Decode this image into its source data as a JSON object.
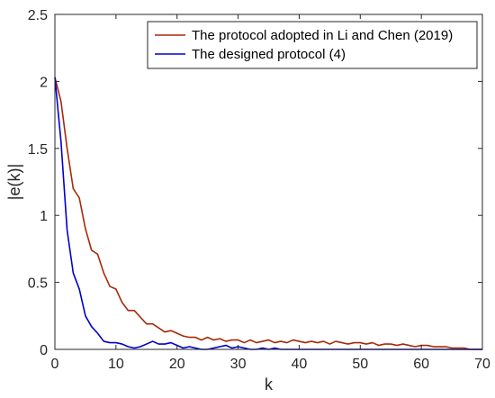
{
  "chart_data": {
    "type": "line",
    "xlabel": "k",
    "ylabel": "|e(k)|",
    "xlim": [
      0,
      70
    ],
    "ylim": [
      0,
      2.5
    ],
    "xticks": [
      0,
      10,
      20,
      30,
      40,
      50,
      60,
      70
    ],
    "yticks": [
      0,
      0.5,
      1,
      1.5,
      2,
      2.5
    ],
    "grid": false,
    "legend_position": "top-right",
    "series": [
      {
        "name": "The protocol adopted in Li and Chen (2019)",
        "color": "#a52a0a",
        "x": [
          0,
          1,
          2,
          3,
          4,
          5,
          6,
          7,
          8,
          9,
          10,
          11,
          12,
          13,
          14,
          15,
          16,
          17,
          18,
          19,
          20,
          21,
          22,
          23,
          24,
          25,
          26,
          27,
          28,
          29,
          30,
          31,
          32,
          33,
          34,
          35,
          36,
          37,
          38,
          39,
          40,
          41,
          42,
          43,
          44,
          45,
          46,
          47,
          48,
          49,
          50,
          51,
          52,
          53,
          54,
          55,
          56,
          57,
          58,
          59,
          60,
          61,
          62,
          63,
          64,
          65,
          66,
          67,
          68,
          69,
          70
        ],
        "y": [
          2.03,
          1.85,
          1.5,
          1.2,
          1.13,
          0.9,
          0.74,
          0.71,
          0.57,
          0.47,
          0.45,
          0.35,
          0.29,
          0.29,
          0.24,
          0.19,
          0.19,
          0.16,
          0.13,
          0.14,
          0.12,
          0.1,
          0.09,
          0.09,
          0.07,
          0.09,
          0.07,
          0.08,
          0.06,
          0.07,
          0.07,
          0.05,
          0.07,
          0.05,
          0.06,
          0.07,
          0.05,
          0.06,
          0.05,
          0.07,
          0.06,
          0.05,
          0.06,
          0.05,
          0.06,
          0.04,
          0.06,
          0.05,
          0.04,
          0.05,
          0.05,
          0.04,
          0.05,
          0.03,
          0.04,
          0.04,
          0.03,
          0.04,
          0.03,
          0.02,
          0.03,
          0.03,
          0.02,
          0.02,
          0.02,
          0.01,
          0.01,
          0.01,
          0.0,
          0.0,
          0.0
        ]
      },
      {
        "name": "The designed protocol (4)",
        "color": "#0000cd",
        "x": [
          0,
          1,
          2,
          3,
          4,
          5,
          6,
          7,
          8,
          9,
          10,
          11,
          12,
          13,
          14,
          15,
          16,
          17,
          18,
          19,
          20,
          21,
          22,
          23,
          24,
          25,
          26,
          27,
          28,
          29,
          30,
          31,
          32,
          33,
          34,
          35,
          36,
          37,
          38,
          39,
          40,
          41,
          42,
          43,
          44,
          45,
          46,
          47,
          48,
          49,
          50,
          51,
          52,
          53,
          54,
          55,
          56,
          57,
          58,
          59,
          60,
          61,
          62,
          63,
          64,
          65,
          66,
          67,
          68,
          69,
          70
        ],
        "y": [
          2.03,
          1.55,
          0.89,
          0.57,
          0.45,
          0.25,
          0.17,
          0.12,
          0.06,
          0.05,
          0.05,
          0.04,
          0.02,
          0.01,
          0.02,
          0.04,
          0.06,
          0.04,
          0.04,
          0.05,
          0.03,
          0.01,
          0.02,
          0.01,
          0.0,
          0.0,
          0.01,
          0.02,
          0.03,
          0.01,
          0.02,
          0.01,
          0.0,
          0.0,
          0.01,
          0.0,
          0.01,
          0.0,
          0.0,
          0.0,
          0.0,
          0.0,
          0.0,
          0.0,
          0.0,
          0.0,
          0.0,
          0.0,
          0.0,
          0.0,
          0.0,
          0.0,
          0.0,
          0.0,
          0.0,
          0.0,
          0.0,
          0.0,
          0.0,
          0.0,
          0.0,
          0.0,
          0.0,
          0.0,
          0.0,
          0.0,
          0.0,
          0.0,
          0.0,
          0.0,
          0.0
        ]
      }
    ]
  }
}
